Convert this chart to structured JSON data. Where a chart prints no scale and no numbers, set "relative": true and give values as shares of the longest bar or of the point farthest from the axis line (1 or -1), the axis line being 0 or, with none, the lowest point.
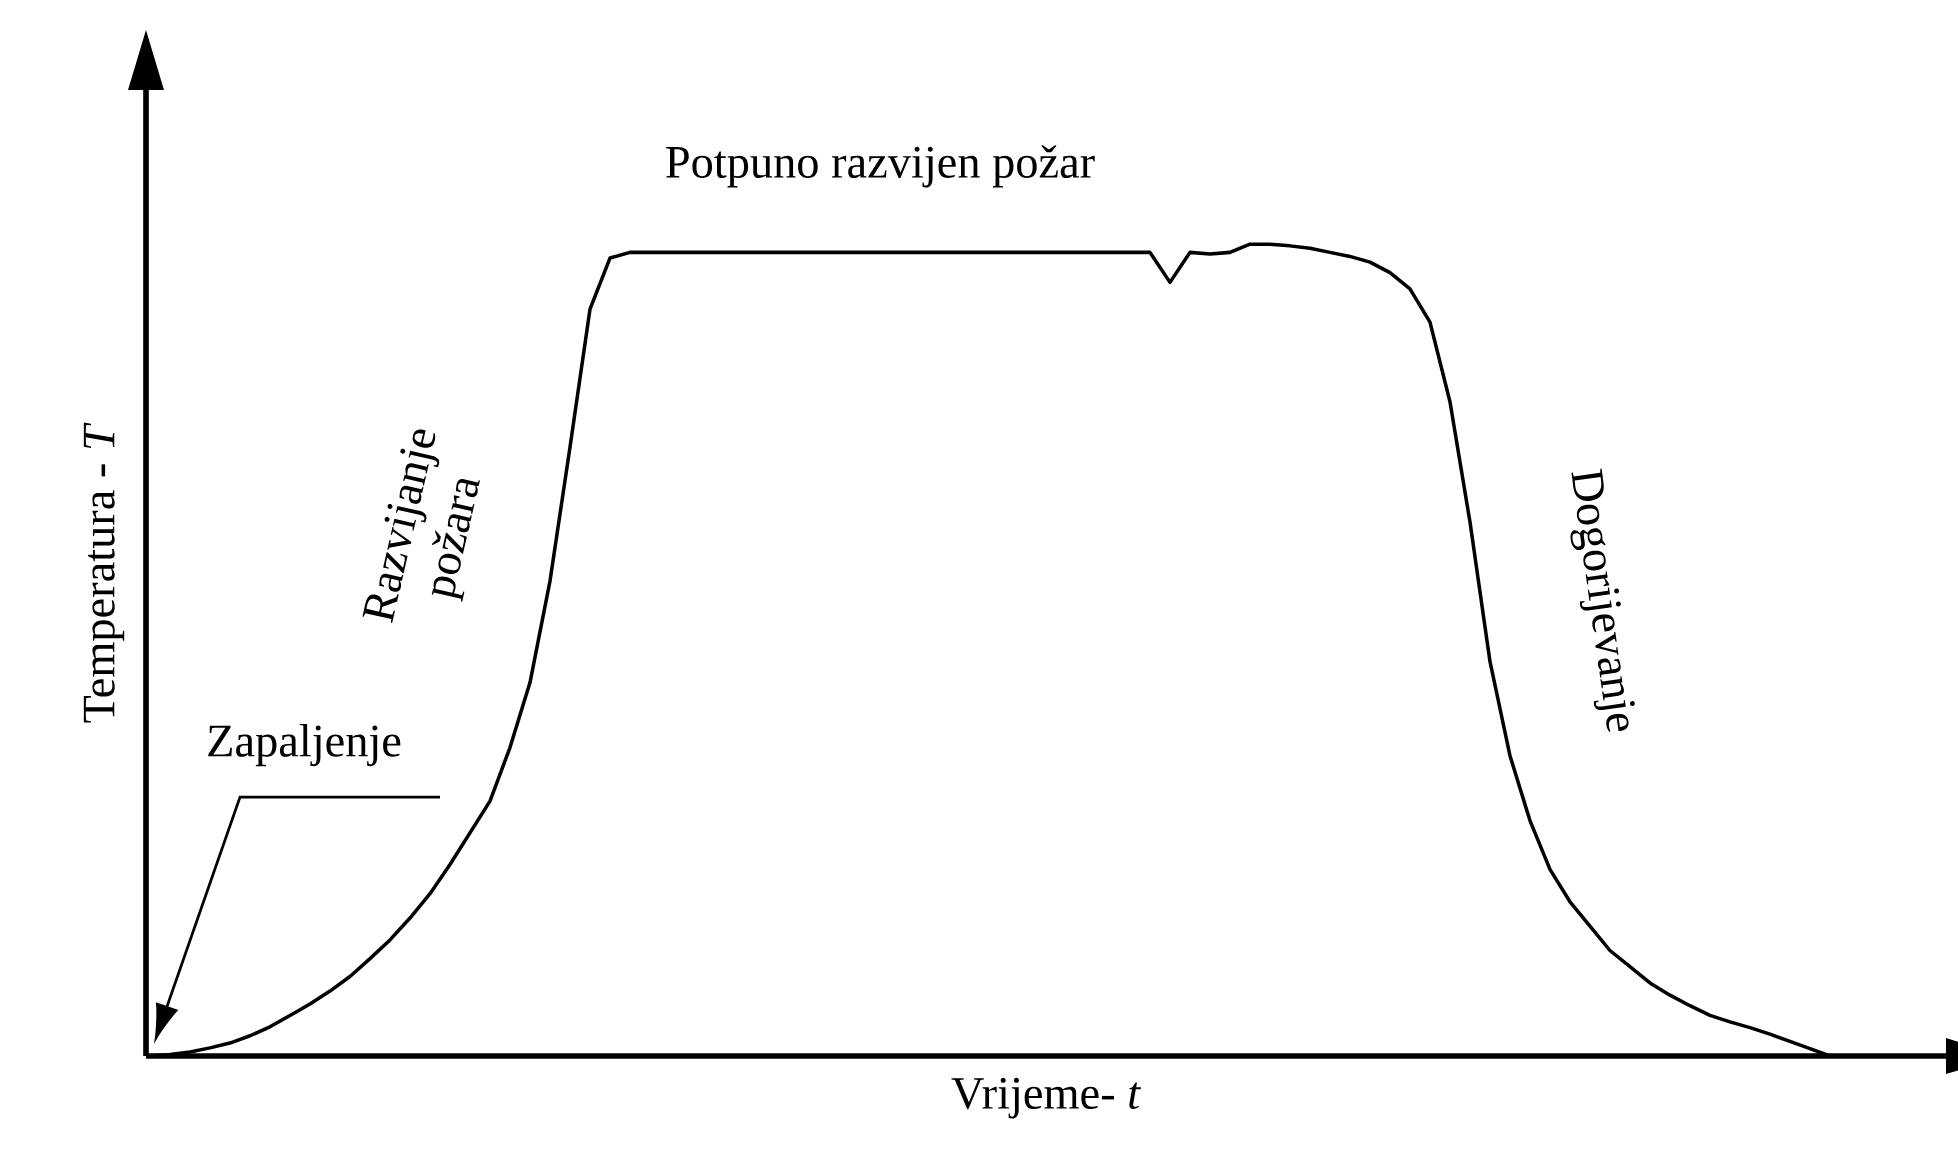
{
  "chart_data": {
    "type": "line",
    "relative": true,
    "tick_labels": false,
    "xlabel": "Vrijeme- *t*",
    "ylabel": "Temperatura - *T*",
    "annotations": [
      "Potpuno razvijen požar",
      "Razvijanje požara",
      "Zapaljenje",
      "Dogorijevanje"
    ],
    "categories": [
      null,
      null,
      null,
      null,
      null,
      null,
      null,
      null,
      null,
      null,
      null,
      null,
      null,
      null,
      null,
      null,
      null,
      null,
      null,
      null,
      null,
      null,
      null,
      null,
      null,
      null,
      null,
      null,
      null,
      null,
      null,
      null,
      null,
      null,
      null,
      null,
      null,
      null,
      null,
      null,
      null,
      null,
      null,
      null,
      null,
      null,
      null,
      null,
      null,
      null,
      null,
      null,
      null,
      null,
      null,
      null,
      null,
      null,
      null,
      null,
      null,
      null,
      null,
      null,
      null,
      null,
      null,
      null,
      null,
      null,
      null,
      null,
      null,
      null,
      null,
      null,
      null,
      null,
      null,
      null,
      null,
      null,
      null,
      null,
      null
    ],
    "series": [
      {
        "color": "#000000",
        "values": [
          0,
          0.002,
          0.005,
          0.01,
          0.016,
          0.025,
          0.036,
          0.05,
          0.064,
          0.08,
          0.098,
          0.12,
          0.143,
          0.17,
          0.2,
          0.236,
          0.275,
          0.314,
          0.38,
          0.46,
          0.585,
          0.75,
          0.92,
          0.983,
          0.99,
          0.99,
          0.99,
          0.99,
          0.99,
          0.99,
          0.99,
          0.99,
          0.99,
          0.99,
          0.99,
          0.99,
          0.99,
          0.99,
          0.99,
          0.99,
          0.99,
          0.99,
          0.99,
          0.99,
          0.99,
          0.99,
          0.99,
          0.99,
          0.99,
          0.99,
          0.99,
          0.953,
          0.99,
          0.988,
          0.99,
          1,
          1,
          0.998,
          0.995,
          0.99,
          0.985,
          0.978,
          0.965,
          0.945,
          0.904,
          0.806,
          0.658,
          0.486,
          0.37,
          0.29,
          0.23,
          0.19,
          0.16,
          0.13,
          0.11,
          0.09,
          0.075,
          0.062,
          0.05,
          0.042,
          0.035,
          0.027,
          0.018,
          0.009,
          0
        ]
      }
    ]
  }
}
